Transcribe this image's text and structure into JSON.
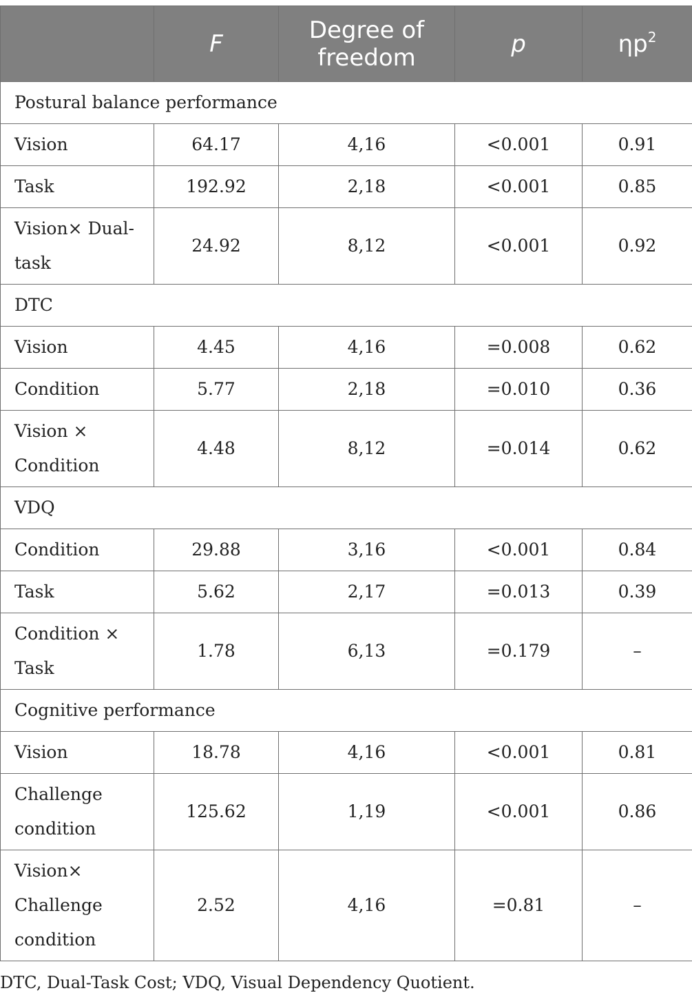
{
  "header": {
    "col0": "",
    "f": "F",
    "df": "Degree of freedom",
    "p": "p",
    "eta_base": "ηp",
    "eta_sup": "2"
  },
  "sections": [
    {
      "title": "Postural balance performance",
      "rows": [
        {
          "label": "Vision",
          "f": "64.17",
          "df": "4,16",
          "p": "<0.001",
          "eta": "0.91"
        },
        {
          "label": "Task",
          "f": "192.92",
          "df": "2,18",
          "p": "<0.001",
          "eta": "0.85"
        },
        {
          "label": "Vision× Dual-task",
          "f": "24.92",
          "df": "8,12",
          "p": "<0.001",
          "eta": "0.92"
        }
      ]
    },
    {
      "title": "DTC",
      "rows": [
        {
          "label": "Vision",
          "f": "4.45",
          "df": "4,16",
          "p": "=0.008",
          "eta": "0.62"
        },
        {
          "label": "Condition",
          "f": "5.77",
          "df": "2,18",
          "p": "=0.010",
          "eta": "0.36"
        },
        {
          "label": "Vision × Condition",
          "f": "4.48",
          "df": "8,12",
          "p": "=0.014",
          "eta": "0.62"
        }
      ]
    },
    {
      "title": "VDQ",
      "rows": [
        {
          "label": "Condition",
          "f": "29.88",
          "df": "3,16",
          "p": "<0.001",
          "eta": "0.84"
        },
        {
          "label": "Task",
          "f": "5.62",
          "df": "2,17",
          "p": "=0.013",
          "eta": "0.39"
        },
        {
          "label": "Condition × Task",
          "f": "1.78",
          "df": "6,13",
          "p": "=0.179",
          "eta": "–"
        }
      ]
    },
    {
      "title": "Cognitive performance",
      "rows": [
        {
          "label": "Vision",
          "f": "18.78",
          "df": "4,16",
          "p": "<0.001",
          "eta": "0.81"
        },
        {
          "label": "Challenge condition",
          "f": "125.62",
          "df": "1,19",
          "p": "<0.001",
          "eta": "0.86"
        },
        {
          "label": "Vision× Challenge condition",
          "f": "2.52",
          "df": "4,16",
          "p": "=0.81",
          "eta": "–"
        }
      ]
    }
  ],
  "footnote": "DTC, Dual-Task Cost; VDQ, Visual Dependency Quotient."
}
